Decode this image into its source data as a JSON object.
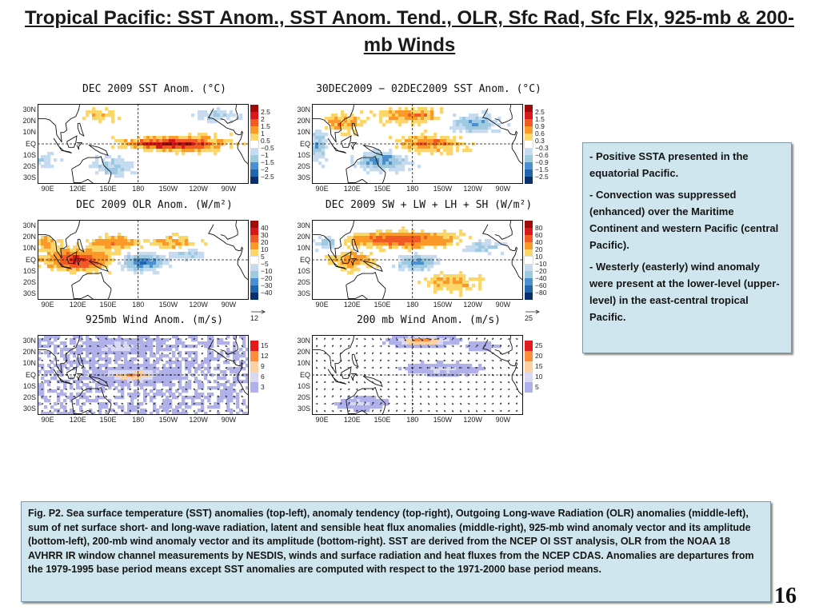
{
  "title": "Tropical Pacific: SST Anom., SST Anom. Tend., OLR, Sfc Rad, Sfc Flx, 925-mb & 200-mb Winds",
  "axes": {
    "lat_labels": [
      "30N",
      "20N",
      "10N",
      "EQ",
      "10S",
      "20S",
      "30S"
    ],
    "lon_labels": [
      "90E",
      "120E",
      "150E",
      "180",
      "150W",
      "120W",
      "90W"
    ]
  },
  "panels": [
    {
      "id": "sst",
      "title": "DEC 2009 SST Anom. (°C)",
      "kind": "anomaly",
      "colorbar_labels": [
        "2.5",
        "2",
        "1.5",
        "1",
        "0.5",
        "−0.5",
        "−1",
        "−1.5",
        "−2",
        "−2.5"
      ],
      "colors": [
        "#a10a0a",
        "#d7191c",
        "#f15a24",
        "#fb9a29",
        "#fdd66a",
        "#ffffff",
        "#c6dbef",
        "#9ecae1",
        "#4a90d0",
        "#2166ac",
        "#08306b"
      ]
    },
    {
      "id": "sst-tend",
      "title": "30DEC2009 − 02DEC2009 SST Anom. (°C)",
      "kind": "anomaly",
      "colorbar_labels": [
        "2.5",
        "1.5",
        "0.9",
        "0.6",
        "0.3",
        "−0.3",
        "−0.6",
        "−0.9",
        "−1.5",
        "−2.5"
      ],
      "colors": [
        "#a10a0a",
        "#d7191c",
        "#f15a24",
        "#fb9a29",
        "#fdd66a",
        "#ffffff",
        "#c6dbef",
        "#9ecae1",
        "#4a90d0",
        "#2166ac",
        "#08306b"
      ]
    },
    {
      "id": "olr",
      "title": "DEC 2009 OLR Anom. (W/m²)",
      "kind": "anomaly",
      "colorbar_labels": [
        "40",
        "30",
        "20",
        "10",
        "5",
        "−5",
        "−10",
        "−20",
        "−30",
        "−40"
      ],
      "colors": [
        "#a10a0a",
        "#d7191c",
        "#f15a24",
        "#fb9a29",
        "#fdd66a",
        "#ffffff",
        "#c6dbef",
        "#9ecae1",
        "#4a90d0",
        "#2166ac",
        "#08306b"
      ]
    },
    {
      "id": "flux",
      "title": "DEC 2009 SW + LW + LH + SH (W/m²)",
      "kind": "anomaly",
      "colorbar_labels": [
        "80",
        "60",
        "40",
        "20",
        "10",
        "−10",
        "−20",
        "−40",
        "−60",
        "−80"
      ],
      "colors": [
        "#a10a0a",
        "#d7191c",
        "#f15a24",
        "#fb9a29",
        "#fdd66a",
        "#ffffff",
        "#c6dbef",
        "#9ecae1",
        "#4a90d0",
        "#2166ac",
        "#08306b"
      ]
    },
    {
      "id": "wind925",
      "title": "925mb Wind Anom. (m/s)",
      "kind": "wind",
      "ref_vector": "12",
      "colorbar_labels": [
        "15",
        "12",
        "9",
        "6",
        "3"
      ],
      "colors": [
        "#e41a1c",
        "#fd8d3c",
        "#fdd0a2",
        "#d9d9f3",
        "#b0b0ea",
        "#ffffff"
      ]
    },
    {
      "id": "wind200",
      "title": "200 mb Wind Anom. (m/s)",
      "kind": "wind",
      "ref_vector": "25",
      "colorbar_labels": [
        "25",
        "20",
        "15",
        "10",
        "5"
      ],
      "colors": [
        "#e41a1c",
        "#fd8d3c",
        "#fdd0a2",
        "#d9d9f3",
        "#b0b0ea",
        "#ffffff"
      ]
    }
  ],
  "notes": [
    "- Positive SSTA presented in the equatorial Pacific.",
    "-  Convection was suppressed (enhanced) over the Maritime Continent and western Pacific (central Pacific).",
    "- Westerly (easterly) wind anomaly were present at the lower-level (upper-level) in the east-central  tropical Pacific."
  ],
  "caption": "Fig. P2. Sea surface temperature (SST) anomalies (top-left), anomaly tendency (top-right), Outgoing Long-wave Radiation (OLR) anomalies (middle-left), sum of net surface short- and long-wave radiation, latent and sensible heat flux anomalies (middle-right), 925-mb wind anomaly vector and its amplitude (bottom-left), 200-mb wind anomaly vector and its amplitude  (bottom-right). SST are derived from the NCEP OI SST analysis, OLR from the NOAA 18 AVHRR IR window channel measurements by NESDIS, winds and surface radiation and heat fluxes from the NCEP CDAS. Anomalies are  departures from the 1979-1995 base period means except SST anomalies are computed with respect to the 1971-2000 base period means.",
  "page_number": "16"
}
